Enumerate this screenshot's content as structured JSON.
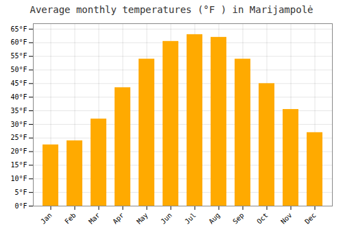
{
  "chart_data": {
    "type": "bar",
    "title": "Average monthly temperatures (°F ) in Marijampolė",
    "categories": [
      "Jan",
      "Feb",
      "Mar",
      "Apr",
      "May",
      "Jun",
      "Jul",
      "Aug",
      "Sep",
      "Oct",
      "Nov",
      "Dec"
    ],
    "values": [
      22.5,
      24.0,
      32.0,
      43.5,
      54.0,
      60.5,
      63.0,
      62.0,
      54.0,
      45.0,
      35.5,
      27.0
    ],
    "color": "#FFAA00",
    "ylim": [
      0,
      67
    ],
    "yticks": [
      {
        "value": 0,
        "label": "0°F"
      },
      {
        "value": 5,
        "label": "5°F"
      },
      {
        "value": 10,
        "label": "10°F"
      },
      {
        "value": 15,
        "label": "15°F"
      },
      {
        "value": 20,
        "label": "20°F"
      },
      {
        "value": 25,
        "label": "25°F"
      },
      {
        "value": 30,
        "label": "30°F"
      },
      {
        "value": 35,
        "label": "35°F"
      },
      {
        "value": 40,
        "label": "40°F"
      },
      {
        "value": 45,
        "label": "45°F"
      },
      {
        "value": 50,
        "label": "50°F"
      },
      {
        "value": 55,
        "label": "55°F"
      },
      {
        "value": 60,
        "label": "60°F"
      },
      {
        "value": 65,
        "label": "65°F"
      }
    ],
    "grid": true
  }
}
